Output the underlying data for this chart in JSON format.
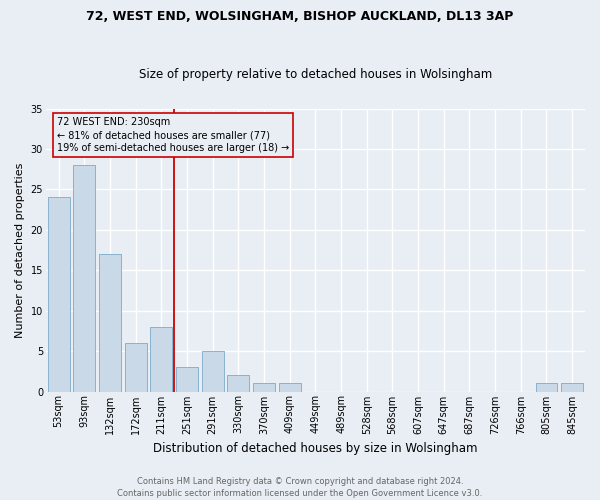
{
  "title1": "72, WEST END, WOLSINGHAM, BISHOP AUCKLAND, DL13 3AP",
  "title2": "Size of property relative to detached houses in Wolsingham",
  "xlabel": "Distribution of detached houses by size in Wolsingham",
  "ylabel": "Number of detached properties",
  "categories": [
    "53sqm",
    "93sqm",
    "132sqm",
    "172sqm",
    "211sqm",
    "251sqm",
    "291sqm",
    "330sqm",
    "370sqm",
    "409sqm",
    "449sqm",
    "489sqm",
    "528sqm",
    "568sqm",
    "607sqm",
    "647sqm",
    "687sqm",
    "726sqm",
    "766sqm",
    "805sqm",
    "845sqm"
  ],
  "values": [
    24,
    28,
    17,
    6,
    8,
    3,
    5,
    2,
    1,
    1,
    0,
    0,
    0,
    0,
    0,
    0,
    0,
    0,
    0,
    1,
    1
  ],
  "bar_color": "#c9d9e8",
  "bar_edge_color": "#7aaac8",
  "bg_color": "#e8eef4",
  "grid_color": "#ffffff",
  "vline_x": 4.5,
  "vline_color": "#cc0000",
  "annotation_line1": "72 WEST END: 230sqm",
  "annotation_line2": "← 81% of detached houses are smaller (77)",
  "annotation_line3": "19% of semi-detached houses are larger (18) →",
  "annotation_box_color": "#cc0000",
  "ylim": [
    0,
    35
  ],
  "yticks": [
    0,
    5,
    10,
    15,
    20,
    25,
    30,
    35
  ],
  "footer": "Contains HM Land Registry data © Crown copyright and database right 2024.\nContains public sector information licensed under the Open Government Licence v3.0.",
  "footer_color": "#666666",
  "title1_fontsize": 9,
  "title2_fontsize": 8.5,
  "ylabel_fontsize": 8,
  "xlabel_fontsize": 8.5,
  "tick_fontsize": 7,
  "annotation_fontsize": 7,
  "footer_fontsize": 6
}
